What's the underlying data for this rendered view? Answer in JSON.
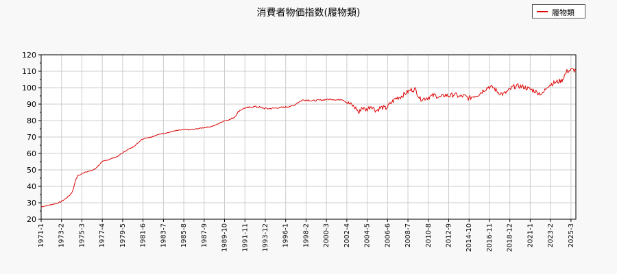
{
  "chart_data": {
    "type": "line",
    "title": "消費者物価指数(履物類)",
    "xlabel": "",
    "ylabel": "",
    "xlim": [
      "1971-1",
      "2025-9"
    ],
    "ylim": [
      20,
      120
    ],
    "yticks": [
      20,
      30,
      40,
      50,
      60,
      70,
      80,
      90,
      100,
      110,
      120
    ],
    "xtick_labels": [
      "1971-1",
      "1973-2",
      "1975-3",
      "1977-4",
      "1979-5",
      "1981-6",
      "1983-7",
      "1985-8",
      "1987-9",
      "1989-10",
      "1991-11",
      "1993-12",
      "1996-1",
      "1998-2",
      "2000-3",
      "2002-4",
      "2004-5",
      "2006-6",
      "2008-7",
      "2010-8",
      "2012-9",
      "2014-10",
      "2016-11",
      "2018-12",
      "2021-1",
      "2023-2",
      "2025-3"
    ],
    "grid": true,
    "legend": "top-right",
    "colors": {
      "series": "#dd0000"
    },
    "series": [
      {
        "name": "履物類",
        "points": [
          [
            "1971-1",
            27.5
          ],
          [
            "1971-7",
            28.2
          ],
          [
            "1972-1",
            28.8
          ],
          [
            "1972-7",
            29.5
          ],
          [
            "1973-1",
            30.5
          ],
          [
            "1973-7",
            32.5
          ],
          [
            "1974-1",
            35.0
          ],
          [
            "1974-4",
            37.5
          ],
          [
            "1974-7",
            43.5
          ],
          [
            "1974-10",
            46.5
          ],
          [
            "1975-1",
            47.0
          ],
          [
            "1975-7",
            48.8
          ],
          [
            "1976-1",
            49.2
          ],
          [
            "1976-7",
            50.5
          ],
          [
            "1977-1",
            53.5
          ],
          [
            "1977-4",
            55.0
          ],
          [
            "1977-10",
            56.0
          ],
          [
            "1978-4",
            57.0
          ],
          [
            "1978-10",
            58.0
          ],
          [
            "1979-4",
            60.0
          ],
          [
            "1979-10",
            62.0
          ],
          [
            "1980-4",
            63.5
          ],
          [
            "1980-10",
            65.5
          ],
          [
            "1981-4",
            68.5
          ],
          [
            "1981-10",
            69.5
          ],
          [
            "1982-4",
            70.0
          ],
          [
            "1982-10",
            71.0
          ],
          [
            "1983-4",
            72.0
          ],
          [
            "1983-10",
            72.5
          ],
          [
            "1984-4",
            73.0
          ],
          [
            "1984-10",
            73.8
          ],
          [
            "1985-4",
            74.2
          ],
          [
            "1985-10",
            74.5
          ],
          [
            "1986-4",
            74.3
          ],
          [
            "1986-10",
            74.8
          ],
          [
            "1987-4",
            75.3
          ],
          [
            "1987-10",
            75.8
          ],
          [
            "1988-4",
            76.2
          ],
          [
            "1988-10",
            77.0
          ],
          [
            "1989-4",
            78.5
          ],
          [
            "1989-10",
            80.0
          ],
          [
            "1990-4",
            80.5
          ],
          [
            "1990-10",
            82.0
          ],
          [
            "1991-4",
            86.0
          ],
          [
            "1991-10",
            87.5
          ],
          [
            "1992-4",
            88.0
          ],
          [
            "1992-10",
            88.5
          ],
          [
            "1993-4",
            88.3
          ],
          [
            "1993-10",
            87.5
          ],
          [
            "1994-4",
            87.2
          ],
          [
            "1994-10",
            87.5
          ],
          [
            "1995-4",
            87.8
          ],
          [
            "1995-10",
            88.0
          ],
          [
            "1996-4",
            88.5
          ],
          [
            "1996-10",
            89.0
          ],
          [
            "1997-4",
            91.0
          ],
          [
            "1997-10",
            92.5
          ],
          [
            "1998-4",
            92.5
          ],
          [
            "1998-10",
            92.0
          ],
          [
            "1999-4",
            92.3
          ],
          [
            "1999-10",
            92.5
          ],
          [
            "2000-4",
            92.8
          ],
          [
            "2000-10",
            93.0
          ],
          [
            "2001-4",
            92.5
          ],
          [
            "2001-10",
            93.0
          ],
          [
            "2002-4",
            91.0
          ],
          [
            "2002-10",
            89.5
          ],
          [
            "2003-4",
            87.0
          ],
          [
            "2003-7",
            84.5
          ],
          [
            "2003-10",
            88.0
          ],
          [
            "2004-4",
            86.5
          ],
          [
            "2004-10",
            89.0
          ],
          [
            "2005-4",
            86.0
          ],
          [
            "2005-10",
            88.0
          ],
          [
            "2006-4",
            87.5
          ],
          [
            "2006-10",
            90.5
          ],
          [
            "2007-4",
            93.5
          ],
          [
            "2007-10",
            94.5
          ],
          [
            "2008-4",
            96.5
          ],
          [
            "2008-10",
            98.5
          ],
          [
            "2009-4",
            99.0
          ],
          [
            "2009-10",
            93.0
          ],
          [
            "2010-4",
            93.5
          ],
          [
            "2010-10",
            94.5
          ],
          [
            "2011-4",
            95.5
          ],
          [
            "2011-10",
            94.0
          ],
          [
            "2012-4",
            95.5
          ],
          [
            "2012-10",
            95.0
          ],
          [
            "2013-4",
            96.0
          ],
          [
            "2013-10",
            94.5
          ],
          [
            "2014-4",
            95.0
          ],
          [
            "2014-10",
            93.5
          ],
          [
            "2015-4",
            95.0
          ],
          [
            "2015-10",
            96.0
          ],
          [
            "2016-4",
            98.5
          ],
          [
            "2016-10",
            100.5
          ],
          [
            "2017-4",
            100.0
          ],
          [
            "2017-10",
            97.0
          ],
          [
            "2018-4",
            96.0
          ],
          [
            "2018-10",
            98.0
          ],
          [
            "2019-4",
            100.5
          ],
          [
            "2019-10",
            101.0
          ],
          [
            "2020-4",
            100.5
          ],
          [
            "2020-10",
            99.5
          ],
          [
            "2021-4",
            98.5
          ],
          [
            "2021-10",
            97.0
          ],
          [
            "2022-4",
            96.0
          ],
          [
            "2022-10",
            101.0
          ],
          [
            "2023-4",
            102.5
          ],
          [
            "2023-10",
            103.5
          ],
          [
            "2024-4",
            104.5
          ],
          [
            "2024-10",
            110.0
          ],
          [
            "2025-4",
            111.0
          ],
          [
            "2025-9",
            110.5
          ]
        ]
      }
    ]
  }
}
